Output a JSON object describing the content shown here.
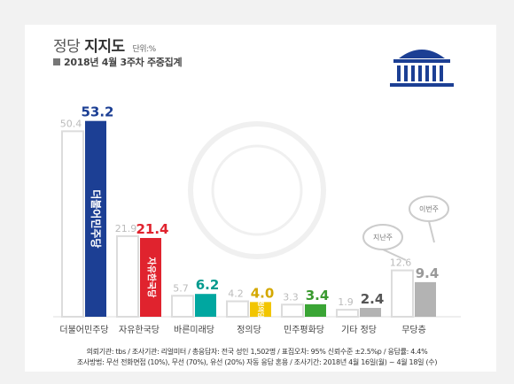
{
  "header": {
    "title_prefix": "정당",
    "title_main": "지지도",
    "unit": "단위:%",
    "subtitle": "2018년 4월 3주차 주중집계"
  },
  "chart_data": {
    "type": "bar",
    "categories": [
      "더불어민주당",
      "자유한국당",
      "바른미래당",
      "정의당",
      "민주평화당",
      "기타 정당",
      "무당층"
    ],
    "series": [
      {
        "name": "지난주",
        "values": [
          50.4,
          21.9,
          5.7,
          4.2,
          3.3,
          1.9,
          12.6
        ]
      },
      {
        "name": "이번주",
        "values": [
          53.2,
          21.4,
          6.2,
          4.0,
          3.4,
          2.4,
          9.4
        ]
      }
    ],
    "colors": [
      "#1c3f94",
      "#e0232e",
      "#00a7a0",
      "#f2c500",
      "#3aa535",
      "#b3b3b3",
      "#b3b3b3"
    ],
    "label_colors": [
      "#1c3f94",
      "#e0232e",
      "#009a8e",
      "#d4a800",
      "#3a9a2f",
      "#555555",
      "#999999"
    ],
    "bar_texts": [
      "더불어민주당",
      "자유한국당",
      "",
      "정의당",
      "",
      "",
      ""
    ],
    "legend_bubbles": [
      "지난주",
      "이번주"
    ],
    "ylim": [
      0,
      55
    ]
  },
  "footer": {
    "source": "의뢰기관: tbs / 조사기관: 리얼미터 / 총응답자: 전국 성인 1,502명 / 표집오차: 95% 신뢰수준 ±2.5%p / 응답률: 4.4%",
    "method": "조사방법: 무선 전화면접 (10%), 무선 (70%), 유선 (20%) 자동 응답 혼용 / 조사기간: 2018년 4월 16일(월) ~ 4월 18일 (수)"
  }
}
